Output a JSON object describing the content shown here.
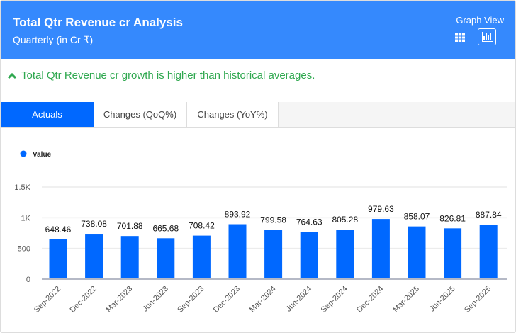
{
  "header": {
    "title": "Total Qtr Revenue cr Analysis",
    "subtitle": "Quarterly (in Cr ₹)",
    "view_label": "Graph View"
  },
  "insight": {
    "text": "Total Qtr Revenue cr growth is higher than historical averages.",
    "icon": "chevron-up-icon",
    "color": "#2fa84f"
  },
  "tabs": [
    {
      "label": "Actuals",
      "active": true
    },
    {
      "label": "Changes (QoQ%)"
    },
    {
      "label": "Changes (YoY%)"
    }
  ],
  "colors": {
    "header": "#3589fd",
    "bar": "#0068ff"
  },
  "chart_data": {
    "type": "bar",
    "title": "",
    "legend": [
      "Value"
    ],
    "legend_position": "top-left",
    "categories": [
      "Sep-2022",
      "Dec-2022",
      "Mar-2023",
      "Jun-2023",
      "Sep-2023",
      "Dec-2023",
      "Mar-2024",
      "Jun-2024",
      "Sep-2024",
      "Dec-2024",
      "Mar-2025",
      "Jun-2025",
      "Sep-2025"
    ],
    "series": [
      {
        "name": "Value",
        "values": [
          648.46,
          738.08,
          701.88,
          665.68,
          708.42,
          893.92,
          799.58,
          764.63,
          805.28,
          979.63,
          858.07,
          826.81,
          887.84
        ]
      }
    ],
    "ylim": [
      0,
      1500
    ],
    "yticks": [
      0,
      500,
      1000,
      1500
    ],
    "ytick_labels": [
      "0",
      "500",
      "1K",
      "1.5K"
    ],
    "grid": true
  }
}
